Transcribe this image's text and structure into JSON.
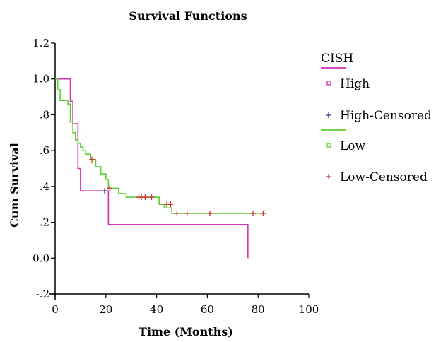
{
  "chart_data": {
    "type": "line",
    "title": "Survival Functions",
    "xlabel": "Time (Months)",
    "ylabel": "Cum Survival",
    "xlim": [
      0,
      100
    ],
    "ylim": [
      -0.2,
      1.2
    ],
    "x_ticks": [
      "0",
      "20",
      "40",
      "60",
      "80",
      "100"
    ],
    "y_ticks": [
      {
        "value": -0.2,
        "label": "-.2"
      },
      {
        "value": 0.0,
        "label": "0.0"
      },
      {
        "value": 0.2,
        "label": ".2"
      },
      {
        "value": 0.4,
        "label": ".4"
      },
      {
        "value": 0.6,
        "label": ".6"
      },
      {
        "value": 0.8,
        "label": ".8"
      },
      {
        "value": 1.0,
        "label": "1.0"
      },
      {
        "value": 1.2,
        "label": "1.2"
      }
    ],
    "grid": false,
    "legend": {
      "title": "CISH",
      "placement": "right",
      "entries": [
        {
          "label": "High",
          "color": "#d62db4",
          "marker": "square"
        },
        {
          "label": "High-Censored",
          "color": "#2d3a9c",
          "marker": "plus"
        },
        {
          "label": "Low",
          "color": "#5bd12e",
          "marker": "square"
        },
        {
          "label": "Low-Censored",
          "color": "#d62d2d",
          "marker": "plus"
        }
      ]
    },
    "series": [
      {
        "name": "High",
        "color": "#d62db4",
        "steps": [
          [
            0,
            1.0
          ],
          [
            6,
            0.875
          ],
          [
            7,
            0.75
          ],
          [
            9,
            0.5
          ],
          [
            10,
            0.375
          ],
          [
            21,
            0.1875
          ],
          [
            76,
            0.0
          ]
        ],
        "censored": [
          [
            19.5,
            0.375
          ]
        ],
        "censor_color": "#2d3a9c"
      },
      {
        "name": "Low",
        "color": "#5bd12e",
        "steps": [
          [
            0,
            1.0
          ],
          [
            1,
            0.94
          ],
          [
            2,
            0.88
          ],
          [
            5,
            0.86
          ],
          [
            6,
            0.76
          ],
          [
            7,
            0.7
          ],
          [
            8,
            0.66
          ],
          [
            9,
            0.64
          ],
          [
            10,
            0.62
          ],
          [
            11,
            0.6
          ],
          [
            12,
            0.58
          ],
          [
            14,
            0.55
          ],
          [
            16,
            0.51
          ],
          [
            18,
            0.47
          ],
          [
            20,
            0.44
          ],
          [
            21,
            0.39
          ],
          [
            25,
            0.36
          ],
          [
            28,
            0.34
          ],
          [
            41,
            0.3
          ],
          [
            43,
            0.28
          ],
          [
            46,
            0.25
          ],
          [
            83,
            0.25
          ]
        ],
        "censored": [
          [
            14.5,
            0.55
          ],
          [
            21.5,
            0.39
          ],
          [
            33,
            0.34
          ],
          [
            34,
            0.34
          ],
          [
            35.5,
            0.34
          ],
          [
            38,
            0.34
          ],
          [
            44,
            0.3
          ],
          [
            45.5,
            0.3
          ],
          [
            48,
            0.25
          ],
          [
            52,
            0.25
          ],
          [
            61,
            0.25
          ],
          [
            78,
            0.25
          ],
          [
            82,
            0.25
          ]
        ],
        "censor_color": "#d62d2d"
      }
    ]
  }
}
